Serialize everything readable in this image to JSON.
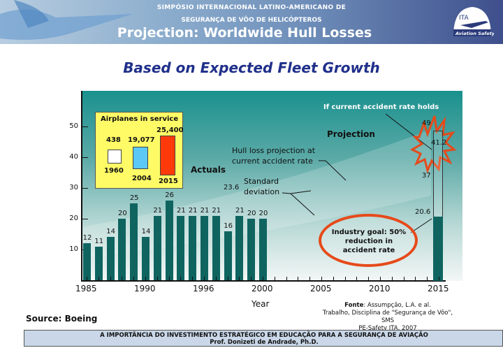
{
  "header": {
    "line1": "SIMPÓSIO INTERNACIONAL LATINO-AMERICANO DE",
    "line2": "SEGURANÇA DE VÔO DE HELICÓPTEROS",
    "title": "Projection: Worldwide Hull Losses",
    "logo_text_top": "ITA",
    "logo_text_bottom": "Aviation Safety"
  },
  "subtitle": "Based on Expected Fleet Growth",
  "chart_data": {
    "type": "bar",
    "title": "Projection: Worldwide Hull Losses",
    "subtitle": "Based on Expected Fleet Growth",
    "xlabel": "Year",
    "ylabel": "",
    "ylim": [
      0,
      60
    ],
    "yticks": [
      10,
      20,
      30,
      40,
      50
    ],
    "xtick_labels": [
      "1985",
      "1990",
      "1996",
      "2000",
      "2005",
      "2010",
      "2015"
    ],
    "categories": [
      "1985",
      "1986",
      "1987",
      "1988",
      "1989",
      "1990",
      "1991",
      "1992",
      "1993",
      "1994",
      "1995",
      "1996",
      "1997",
      "1998",
      "1999",
      "2000"
    ],
    "values": [
      12,
      11,
      14,
      20,
      25,
      14,
      21,
      26,
      21,
      21,
      21,
      21,
      16,
      21,
      20,
      20
    ],
    "series": [
      {
        "name": "Actuals",
        "categories": [
          "1985",
          "1986",
          "1987",
          "1988",
          "1989",
          "1990",
          "1991",
          "1992",
          "1993",
          "1994",
          "1995",
          "1996",
          "1997",
          "1998",
          "1999",
          "2000"
        ],
        "values": [
          12,
          11,
          14,
          20,
          25,
          14,
          21,
          26,
          21,
          21,
          21,
          21,
          16,
          21,
          20,
          20
        ]
      },
      {
        "name": "Projection 2015 (industry goal)",
        "categories": [
          "2015"
        ],
        "values": [
          20.6
        ]
      },
      {
        "name": "Projection 2015 (current accident rate)",
        "categories": [
          "2015"
        ],
        "values": [
          41.2
        ],
        "range": [
          37,
          49
        ]
      }
    ],
    "annotations": [
      "Actuals",
      "Projection",
      "If current accident rate holds",
      "Hull loss projection at current accident rate",
      "23.6 Standard deviation",
      "Industry goal: 50% reduction in accident rate",
      "49",
      "41.2",
      "37",
      "20.6"
    ],
    "inset": {
      "title": "Airplanes in service",
      "items": [
        {
          "year": "1960",
          "value": "438",
          "color": "#ffffff"
        },
        {
          "year": "2004",
          "value": "19,077",
          "color": "#5cc8f5"
        },
        {
          "year": "2015",
          "value": "25,400",
          "color": "#ff3a0a"
        }
      ]
    },
    "grid": false,
    "legend": "none"
  },
  "labels": {
    "actuals": "Actuals",
    "projection": "Projection",
    "if_current": "If current accident rate holds",
    "hull_loss_1": "Hull loss projection at",
    "hull_loss_2": "current accident rate",
    "std_val": "23.6",
    "std_1": "Standard",
    "std_2": "deviation",
    "goal_1": "Industry goal: 50%",
    "goal_2": "reduction in",
    "goal_3": "accident rate",
    "v49": "49",
    "v412": "41.2",
    "v37": "37",
    "v206": "20.6",
    "year": "Year"
  },
  "source": "Source: Boeing",
  "fonte": {
    "label": "Fonte",
    "line1_rest": ": Assumpção, L.A. e al.",
    "line2": "Trabalho, Disciplina de \"Segurança de Vôo\", SMS",
    "line3": "PE-Safety ITA, 2007"
  },
  "footer": {
    "line1": "A IMPORTÂNCIA DO INVESTIMENTO ESTRATÉGICO EM EDUCAÇÃO PARA A SEGURANÇA DE AVIAÇÃO",
    "line2": "Prof. Donizeti de Andrade, Ph.D."
  }
}
